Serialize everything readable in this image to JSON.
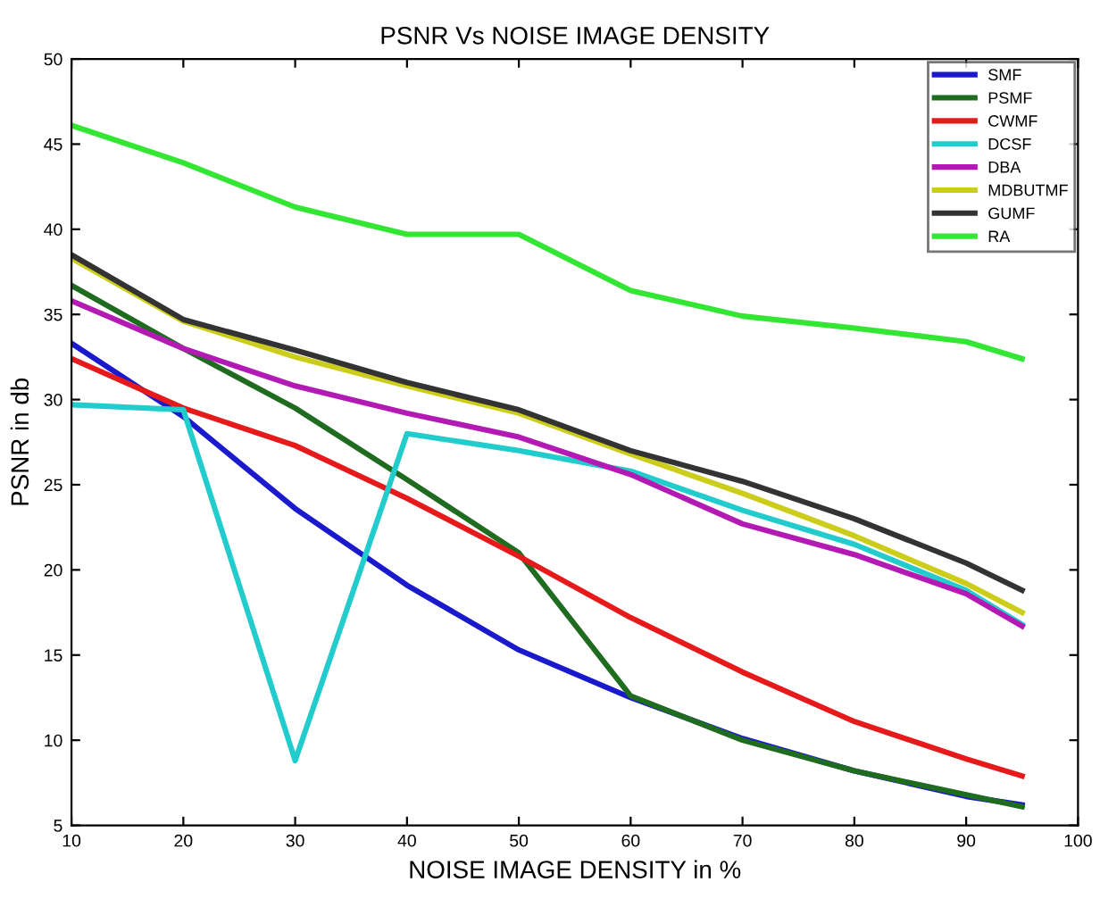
{
  "chart_data": {
    "type": "line",
    "title": "PSNR Vs NOISE IMAGE DENSITY",
    "xlabel": "NOISE IMAGE DENSITY in %",
    "ylabel": "PSNR in db",
    "x": [
      10,
      20,
      30,
      40,
      50,
      60,
      70,
      80,
      90,
      95
    ],
    "series": [
      {
        "name": "SMF",
        "color": "#1a1acc",
        "values": [
          33.3,
          29.0,
          23.6,
          19.1,
          15.3,
          12.5,
          10.1,
          8.2,
          6.7,
          6.2
        ]
      },
      {
        "name": "PSMF",
        "color": "#1f6b1f",
        "values": [
          36.7,
          33.0,
          29.5,
          25.3,
          21.0,
          12.6,
          10.0,
          8.2,
          6.8,
          6.1
        ]
      },
      {
        "name": "CWMF",
        "color": "#e61a1a",
        "values": [
          32.4,
          29.5,
          27.3,
          24.2,
          20.8,
          17.2,
          14.0,
          11.1,
          8.9,
          7.9
        ]
      },
      {
        "name": "DCSF",
        "color": "#22cccc",
        "values": [
          29.7,
          29.4,
          8.8,
          28.0,
          27.0,
          25.8,
          23.5,
          21.5,
          18.8,
          16.8
        ]
      },
      {
        "name": "DBA",
        "color": "#b31ab3",
        "values": [
          35.8,
          33.0,
          30.8,
          29.2,
          27.8,
          25.6,
          22.7,
          20.9,
          18.6,
          16.7
        ]
      },
      {
        "name": "MDBUTMF",
        "color": "#cccc1a",
        "values": [
          38.3,
          34.6,
          32.5,
          30.8,
          29.2,
          26.8,
          24.5,
          22.0,
          19.2,
          17.5
        ]
      },
      {
        "name": "GUMF",
        "color": "#333333",
        "values": [
          38.5,
          34.7,
          32.9,
          31.0,
          29.4,
          27.0,
          25.2,
          23.0,
          20.4,
          18.8
        ]
      },
      {
        "name": "RA",
        "color": "#33e633",
        "values": [
          46.1,
          43.9,
          41.3,
          39.7,
          39.7,
          36.4,
          34.9,
          34.2,
          33.4,
          32.4
        ]
      }
    ],
    "xlim": [
      10,
      100
    ],
    "ylim": [
      5,
      50
    ],
    "xticks": [
      10,
      20,
      30,
      40,
      50,
      60,
      70,
      80,
      90,
      100
    ],
    "yticks": [
      5,
      10,
      15,
      20,
      25,
      30,
      35,
      40,
      45,
      50
    ],
    "grid": false,
    "legend": "top right"
  }
}
